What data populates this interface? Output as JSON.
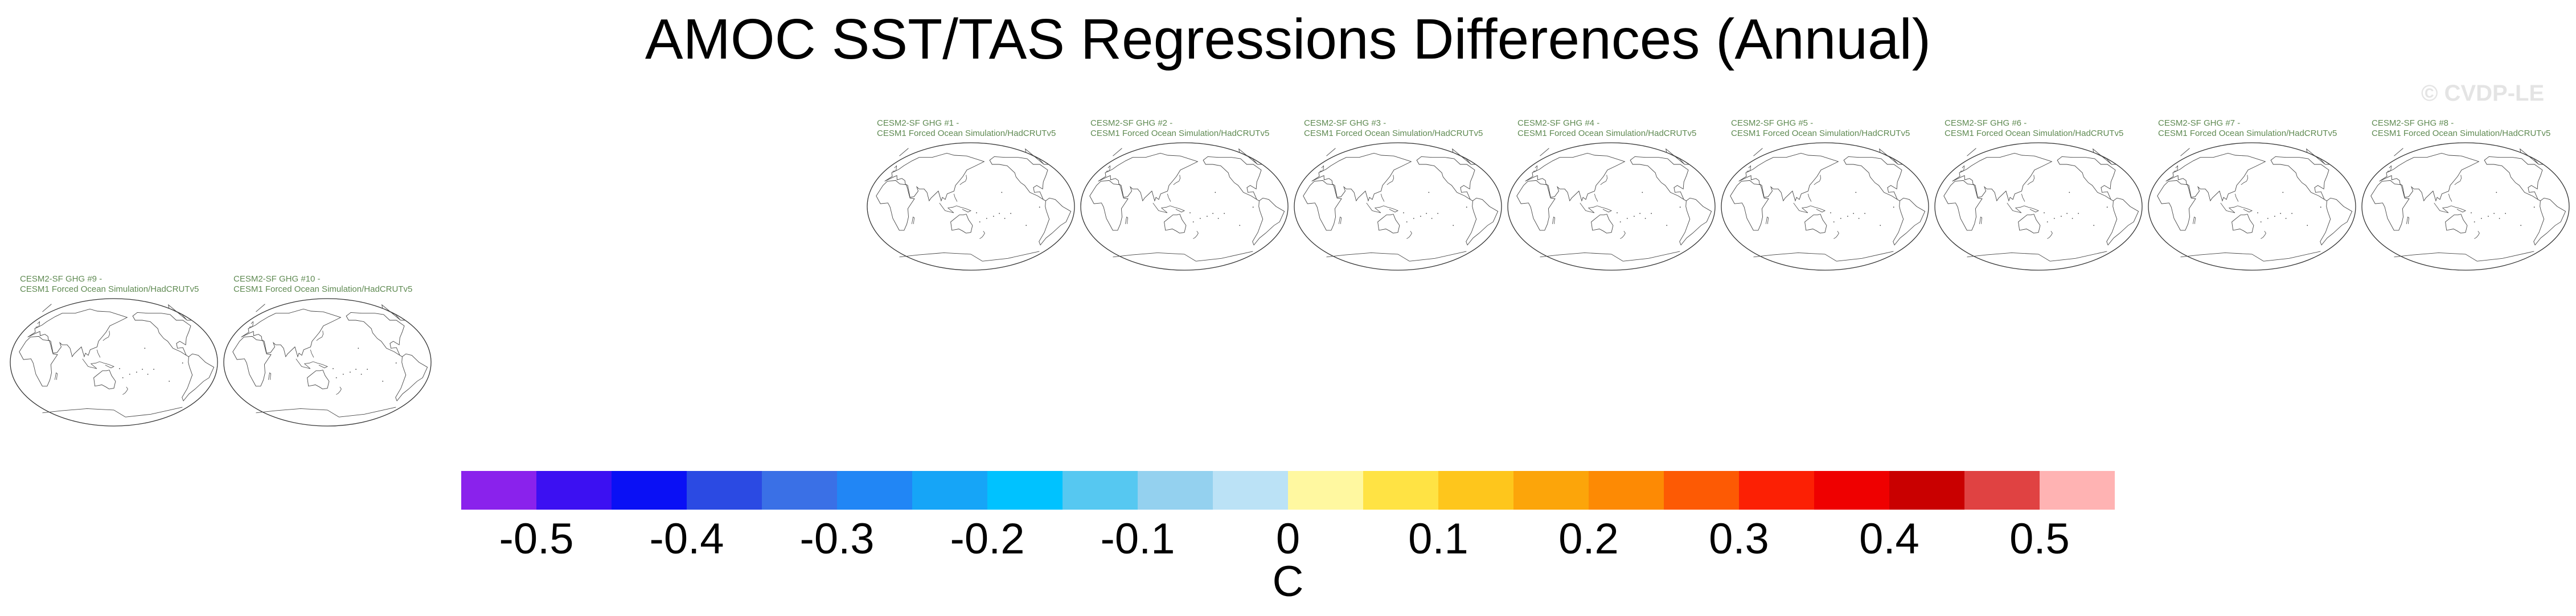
{
  "title": "AMOC SST/TAS Regressions Differences (Annual)",
  "watermark": "© CVDP-LE",
  "panels": [
    {
      "line1": "CESM2-SF GHG #1 -",
      "line2": "CESM1 Forced Ocean Simulation/HadCRUTv5"
    },
    {
      "line1": "CESM2-SF GHG #2 -",
      "line2": "CESM1 Forced Ocean Simulation/HadCRUTv5"
    },
    {
      "line1": "CESM2-SF GHG #3 -",
      "line2": "CESM1 Forced Ocean Simulation/HadCRUTv5"
    },
    {
      "line1": "CESM2-SF GHG #4 -",
      "line2": "CESM1 Forced Ocean Simulation/HadCRUTv5"
    },
    {
      "line1": "CESM2-SF GHG #5 -",
      "line2": "CESM1 Forced Ocean Simulation/HadCRUTv5"
    },
    {
      "line1": "CESM2-SF GHG #6 -",
      "line2": "CESM1 Forced Ocean Simulation/HadCRUTv5"
    },
    {
      "line1": "CESM2-SF GHG #7 -",
      "line2": "CESM1 Forced Ocean Simulation/HadCRUTv5"
    },
    {
      "line1": "CESM2-SF GHG #8 -",
      "line2": "CESM1 Forced Ocean Simulation/HadCRUTv5"
    },
    {
      "line1": "CESM2-SF GHG #9 -",
      "line2": "CESM1 Forced Ocean Simulation/HadCRUTv5"
    },
    {
      "line1": "CESM2-SF GHG #10 -",
      "line2": "CESM1 Forced Ocean Simulation/HadCRUTv5"
    }
  ],
  "chart_data": {
    "type": "heatmap",
    "projection": "Robinson, Pacific-centered",
    "panel_fill": "blank (outlines only)",
    "colorbar": {
      "units": "C",
      "labels": [
        "-0.5",
        "-0.4",
        "-0.3",
        "-0.2",
        "-0.1",
        "0",
        "0.1",
        "0.2",
        "0.3",
        "0.4",
        "0.5"
      ],
      "label_values": [
        -0.5,
        -0.4,
        -0.3,
        -0.2,
        -0.1,
        0,
        0.1,
        0.2,
        0.3,
        0.4,
        0.5
      ],
      "range": [
        -0.55,
        0.55
      ],
      "step": 0.05,
      "colors": [
        "#8a22ec",
        "#3c10f2",
        "#0a10f5",
        "#2b4ae3",
        "#3a70e6",
        "#2186f5",
        "#16a5f7",
        "#00c2ff",
        "#56c8f1",
        "#94d1ef",
        "#bbe2f6",
        "#fff8a0",
        "#ffe344",
        "#fec61c",
        "#fca50a",
        "#fd8a04",
        "#fd5a04",
        "#fc2004",
        "#ef0000",
        "#c90000",
        "#e04242",
        "#ffb3b3"
      ]
    }
  }
}
